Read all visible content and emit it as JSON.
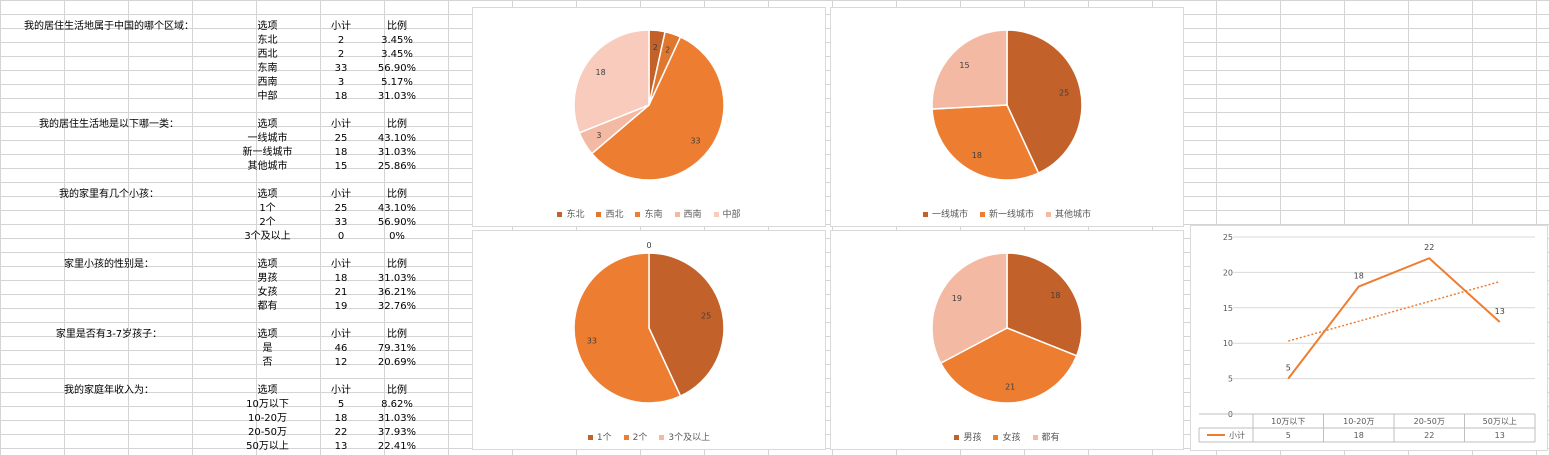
{
  "colors": {
    "dark": "#c3612a",
    "orange": "#ed7d31",
    "light": "#f4b9a3",
    "pale": "#f8cbbc",
    "trend": "#ed7d31"
  },
  "tables": [
    {
      "question": "我的居住生活地属于中国的哪个区域：",
      "header": [
        "选项",
        "小计",
        "比例"
      ],
      "rows": [
        [
          "东北",
          "2",
          "3.45%"
        ],
        [
          "西北",
          "2",
          "3.45%"
        ],
        [
          "东南",
          "33",
          "56.90%"
        ],
        [
          "西南",
          "3",
          "5.17%"
        ],
        [
          "中部",
          "18",
          "31.03%"
        ]
      ]
    },
    {
      "question": "我的居住生活地是以下哪一类：",
      "header": [
        "选项",
        "小计",
        "比例"
      ],
      "rows": [
        [
          "一线城市",
          "25",
          "43.10%"
        ],
        [
          "新一线城市",
          "18",
          "31.03%"
        ],
        [
          "其他城市",
          "15",
          "25.86%"
        ]
      ]
    },
    {
      "question": "我的家里有几个小孩：",
      "header": [
        "选项",
        "小计",
        "比例"
      ],
      "rows": [
        [
          "1个",
          "25",
          "43.10%"
        ],
        [
          "2个",
          "33",
          "56.90%"
        ],
        [
          "3个及以上",
          "0",
          "0%"
        ]
      ]
    },
    {
      "question": "家里小孩的性别是：",
      "header": [
        "选项",
        "小计",
        "比例"
      ],
      "rows": [
        [
          "男孩",
          "18",
          "31.03%"
        ],
        [
          "女孩",
          "21",
          "36.21%"
        ],
        [
          "都有",
          "19",
          "32.76%"
        ]
      ]
    },
    {
      "question": "家里是否有3-7岁孩子：",
      "header": [
        "选项",
        "小计",
        "比例"
      ],
      "rows": [
        [
          "是",
          "46",
          "79.31%"
        ],
        [
          "否",
          "12",
          "20.69%"
        ]
      ]
    },
    {
      "question": "我的家庭年收入为：",
      "header": [
        "选项",
        "小计",
        "比例"
      ],
      "rows": [
        [
          "10万以下",
          "5",
          "8.62%"
        ],
        [
          "10-20万",
          "18",
          "31.03%"
        ],
        [
          "20-50万",
          "22",
          "37.93%"
        ],
        [
          "50万以上",
          "13",
          "22.41%"
        ]
      ]
    }
  ],
  "chart_data": [
    {
      "type": "pie",
      "categories": [
        "东北",
        "西北",
        "东南",
        "西南",
        "中部"
      ],
      "values": [
        2,
        2,
        33,
        3,
        18
      ],
      "colors": [
        "#c3612a",
        "#e0772f",
        "#ed7d31",
        "#f4b9a3",
        "#f8cbbc"
      ],
      "legend_position": "bottom"
    },
    {
      "type": "pie",
      "categories": [
        "一线城市",
        "新一线城市",
        "其他城市"
      ],
      "values": [
        25,
        18,
        15
      ],
      "colors": [
        "#c3612a",
        "#ed7d31",
        "#f4b9a3"
      ],
      "legend_position": "bottom"
    },
    {
      "type": "pie",
      "categories": [
        "1个",
        "2个",
        "3个及以上"
      ],
      "values": [
        25,
        33,
        0
      ],
      "colors": [
        "#c3612a",
        "#ed7d31",
        "#f4b9a3"
      ],
      "legend_position": "bottom"
    },
    {
      "type": "pie",
      "categories": [
        "男孩",
        "女孩",
        "都有"
      ],
      "values": [
        18,
        21,
        19
      ],
      "colors": [
        "#c3612a",
        "#ed7d31",
        "#f4b9a3"
      ],
      "legend_position": "bottom"
    },
    {
      "type": "line",
      "categories": [
        "10万以下",
        "10-20万",
        "20-50万",
        "50万以上"
      ],
      "series": [
        {
          "name": "小计",
          "values": [
            5,
            18,
            22,
            13
          ]
        }
      ],
      "trendline": "linear",
      "ylim": [
        0,
        25
      ],
      "yticks": [
        0,
        5,
        10,
        15,
        20,
        25
      ],
      "grid": true,
      "data_table": true
    }
  ]
}
